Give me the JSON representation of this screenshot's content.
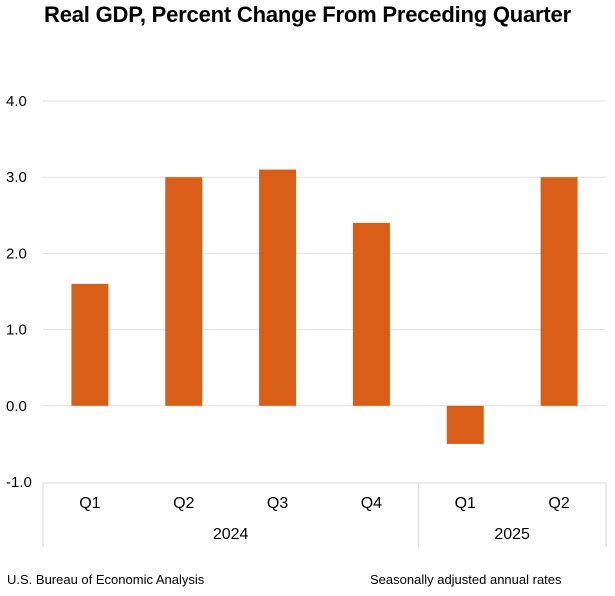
{
  "chart_data": {
    "type": "bar",
    "title": "Real GDP, Percent Change From Preceding Quarter",
    "xlabel": "",
    "ylabel": "",
    "categories": [
      "Q1",
      "Q2",
      "Q3",
      "Q4",
      "Q1",
      "Q2"
    ],
    "category_groups": [
      {
        "label": "2024",
        "categories": [
          "Q1",
          "Q2",
          "Q3",
          "Q4"
        ]
      },
      {
        "label": "2025",
        "categories": [
          "Q1",
          "Q2"
        ]
      }
    ],
    "series": [
      {
        "name": "Real GDP percent change",
        "color": "#D95F18",
        "values": [
          1.6,
          3.0,
          3.1,
          2.4,
          -0.5,
          3.0
        ]
      }
    ],
    "ylim": [
      -1.0,
      4.0
    ],
    "yticks": [
      "4.0",
      "3.0",
      "2.0",
      "1.0",
      "0.0",
      "-1.0"
    ],
    "ytick_values": [
      4.0,
      3.0,
      2.0,
      1.0,
      0.0,
      -1.0
    ],
    "grid": true,
    "legend": "none",
    "source": "U.S. Bureau of Economic Analysis",
    "note": "Seasonally adjusted annual rates"
  },
  "colors": {
    "bar": "#D95F18",
    "gridline": "#E0E0E0",
    "axis_border": "#D9D9D9"
  }
}
